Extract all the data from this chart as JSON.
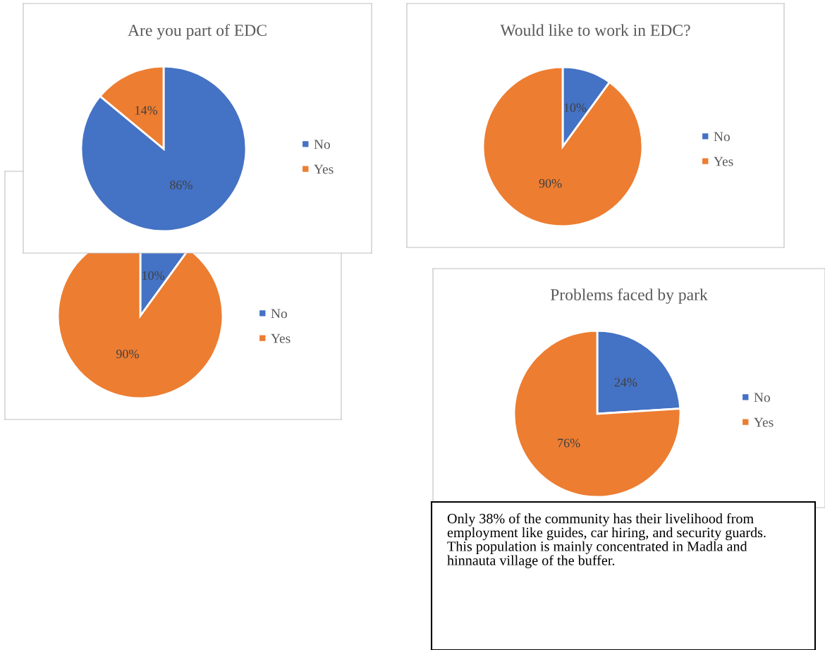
{
  "chart_data": [
    {
      "type": "pie",
      "title": "Are you part of EDC",
      "categories": [
        "No",
        "Yes"
      ],
      "values": [
        86,
        14
      ],
      "colors": [
        "#4472c4",
        "#ed7d31"
      ],
      "value_labels": [
        "86%",
        "14%"
      ],
      "legend": "right"
    },
    {
      "type": "pie",
      "title": "Would like to work in EDC?",
      "categories": [
        "No",
        "Yes"
      ],
      "values": [
        10,
        90
      ],
      "colors": [
        "#4472c4",
        "#ed7d31"
      ],
      "value_labels": [
        "10%",
        "90%"
      ],
      "legend": "right"
    },
    {
      "type": "pie",
      "categories": [
        "No",
        "Yes"
      ],
      "values": [
        10,
        90
      ],
      "colors": [
        "#4472c4",
        "#ed7d31"
      ],
      "value_labels": [
        "10%",
        "90%"
      ],
      "legend": "right"
    },
    {
      "type": "pie",
      "title": "Problems faced by park",
      "categories": [
        "No",
        "Yes"
      ],
      "values": [
        24,
        76
      ],
      "colors": [
        "#4472c4",
        "#ed7d31"
      ],
      "value_labels": [
        "24%",
        "76%"
      ],
      "legend": "right"
    },
    {
      "type": "other",
      "annotations": [
        "Only 38% of the community has their livelihood from employment like guides, car hiring, and security guards. This population is mainly concentrated in Madla and hinnauta village of the buffer."
      ]
    }
  ]
}
